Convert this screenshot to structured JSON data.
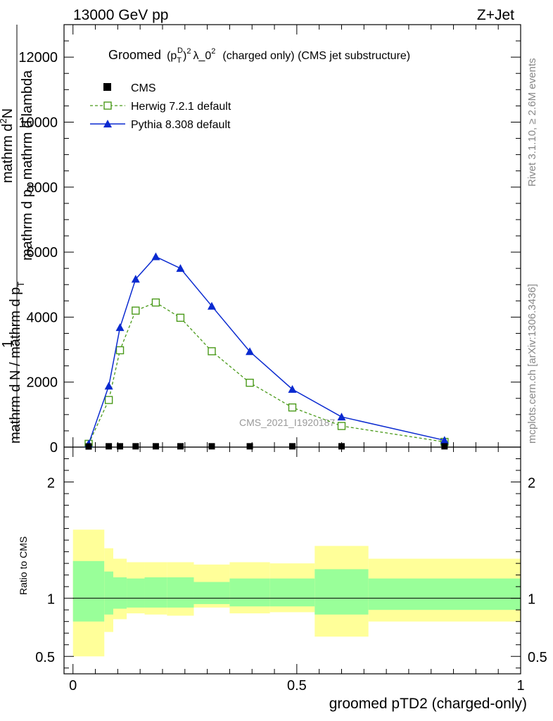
{
  "header": {
    "left": "13000 GeV pp",
    "right": "Z+Jet"
  },
  "side_labels": {
    "rivet": "Rivet 3.1.10, ≥ 2.6M events",
    "mcplots": "mcplots.cern.ch [arXiv:1306.3436]"
  },
  "chart_data": [
    {
      "type": "line",
      "title": "Groomed (p_T^D)^2 λ_0^2  (charged only) (CMS jet substructure)",
      "title_parts": {
        "prefix": "Groomed",
        "sup_d": "D",
        "sub_t": "T",
        "sup2": "2",
        "mid": "λ_0",
        "sup2b": "2",
        "suffix": "(charged only) (CMS jet substructure)"
      },
      "ylabel": "mathrm d N / mathrm d p_T mathrm d lambda",
      "ylabel_parts": {
        "line1": "mathrm d",
        "sup_n": "2",
        "line1b": "N",
        "numerator_one": "1",
        "denominator": "mathrm d N / mathrm d p",
        "den_sub": "T",
        "den_tail": "mathrm d p",
        "den_sub2": "T",
        "den_tail2": " mathrm d lambda"
      },
      "ylabel_lines": {
        "top_numerator": "mathrm d",
        "top_numerator_sup": "2",
        "top_numerator_tail": "N",
        "top_denominator": "mathrm d p",
        "top_denominator_sub": "T",
        "top_denominator_tail": " mathrm d lambda",
        "one": "1",
        "bottom": "mathrm d N / mathrm d p",
        "bottom_sub": "T"
      },
      "xlim": [
        -0.02,
        1.0
      ],
      "ylim": [
        0,
        13000
      ],
      "yticks": [
        0,
        2000,
        4000,
        6000,
        8000,
        10000,
        12000
      ],
      "ytick_labels": [
        "0",
        "2000",
        "4000",
        "6000",
        "8000",
        "10000",
        "12000"
      ],
      "legend": [
        {
          "name": "CMS",
          "marker": "square-filled",
          "color": "#000000"
        },
        {
          "name": "Herwig 7.2.1 default",
          "marker": "square-open",
          "color": "#4a9a1a",
          "dash": true
        },
        {
          "name": "Pythia 8.308 default",
          "marker": "triangle",
          "color": "#0a2ad0"
        }
      ],
      "watermark": "CMS_2021_I1920187",
      "cms_x": [
        0.035,
        0.08,
        0.105,
        0.14,
        0.185,
        0.24,
        0.31,
        0.395,
        0.49,
        0.6,
        0.83
      ],
      "cms_y": [
        20,
        25,
        25,
        25,
        25,
        25,
        25,
        25,
        25,
        25,
        25
      ],
      "series": [
        {
          "name": "Herwig 7.2.1 default",
          "x": [
            0.035,
            0.08,
            0.105,
            0.14,
            0.185,
            0.24,
            0.31,
            0.395,
            0.49,
            0.6,
            0.83
          ],
          "y": [
            100,
            1450,
            2980,
            4200,
            4450,
            3980,
            2950,
            1980,
            1220,
            650,
            160
          ]
        },
        {
          "name": "Pythia 8.308 default",
          "x": [
            0.035,
            0.08,
            0.105,
            0.14,
            0.185,
            0.24,
            0.31,
            0.395,
            0.49,
            0.6,
            0.83
          ],
          "y": [
            100,
            1880,
            3680,
            5170,
            5860,
            5500,
            4340,
            2940,
            1780,
            930,
            210
          ]
        }
      ]
    },
    {
      "type": "area",
      "ylabel": "Ratio to CMS",
      "xlabel": "groomed pTD2 (charged-only)",
      "xlim": [
        -0.02,
        1.0
      ],
      "ylim": [
        0.35,
        2.3
      ],
      "yticks": [
        0.5,
        1,
        2
      ],
      "ytick_labels": [
        "0.5",
        "1",
        "2"
      ],
      "xticks": [
        0,
        0.5,
        1
      ],
      "xtick_labels": [
        "0",
        "0.5",
        "1"
      ],
      "bins": [
        0.0,
        0.07,
        0.09,
        0.12,
        0.16,
        0.21,
        0.27,
        0.35,
        0.44,
        0.54,
        0.66,
        1.0
      ],
      "band_yellow": {
        "lo": [
          0.5,
          0.71,
          0.82,
          0.87,
          0.86,
          0.85,
          0.92,
          0.87,
          0.88,
          0.67,
          0.8
        ],
        "hi": [
          1.59,
          1.43,
          1.34,
          1.31,
          1.31,
          1.31,
          1.29,
          1.31,
          1.3,
          1.45,
          1.34
        ]
      },
      "band_green": {
        "lo": [
          0.8,
          0.86,
          0.91,
          0.92,
          0.92,
          0.92,
          0.95,
          0.93,
          0.93,
          0.86,
          0.9
        ],
        "hi": [
          1.32,
          1.23,
          1.18,
          1.17,
          1.18,
          1.18,
          1.14,
          1.17,
          1.17,
          1.25,
          1.17
        ]
      },
      "reference": 1
    }
  ]
}
